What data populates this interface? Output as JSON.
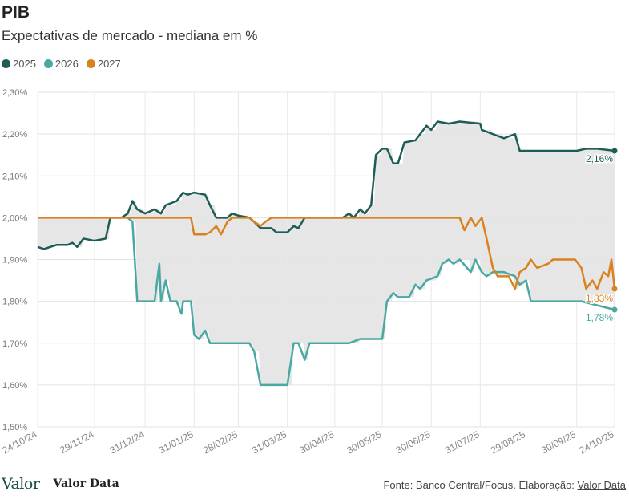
{
  "header": {
    "title": "PIB",
    "subtitle": "Expectativas de mercado - mediana em %"
  },
  "legend": [
    {
      "label": "2025",
      "color": "#1e5c57"
    },
    {
      "label": "2026",
      "color": "#4aa8a3"
    },
    {
      "label": "2027",
      "color": "#d9821f"
    }
  ],
  "footer": {
    "logo": "Valor",
    "logo_secondary": "Valor Data",
    "source_prefix": "Fonte: Banco Central/Focus. Elaboração: ",
    "source_link": "Valor Data"
  },
  "chart_data": {
    "type": "line",
    "title": "PIB",
    "subtitle": "Expectativas de mercado - mediana em %",
    "ylim": [
      1.5,
      2.3
    ],
    "yticks": [
      1.5,
      1.6,
      1.7,
      1.8,
      1.9,
      2.0,
      2.1,
      2.2,
      2.3
    ],
    "ytick_labels": [
      "1,50%",
      "1,60%",
      "1,70%",
      "1,80%",
      "1,90%",
      "2,00%",
      "2,10%",
      "2,20%",
      "2,30%"
    ],
    "xlim": [
      "2024-10-24",
      "2025-10-24"
    ],
    "xticks": [
      "2024-10-24",
      "2024-11-29",
      "2024-12-31",
      "2025-01-31",
      "2025-02-28",
      "2025-03-31",
      "2025-04-30",
      "2025-05-30",
      "2025-06-30",
      "2025-07-31",
      "2025-08-29",
      "2025-09-30",
      "2025-10-24"
    ],
    "xtick_labels": [
      "24/10/24",
      "29/11/24",
      "31/12/24",
      "31/01/25",
      "28/02/25",
      "31/03/25",
      "30/04/25",
      "30/05/25",
      "30/06/25",
      "31/07/25",
      "29/08/25",
      "30/09/25",
      "24/10/25"
    ],
    "grid": true,
    "legend_position": "top-left",
    "shaded_area": "between max and min of series",
    "series": [
      {
        "name": "2025",
        "color": "#1e5c57",
        "end_label": "2,16%",
        "points": [
          [
            "2024-10-24",
            1.93
          ],
          [
            "2024-10-28",
            1.925
          ],
          [
            "2024-11-01",
            1.93
          ],
          [
            "2024-11-05",
            1.935
          ],
          [
            "2024-11-12",
            1.935
          ],
          [
            "2024-11-15",
            1.94
          ],
          [
            "2024-11-18",
            1.93
          ],
          [
            "2024-11-22",
            1.95
          ],
          [
            "2024-11-29",
            1.945
          ],
          [
            "2024-12-06",
            1.95
          ],
          [
            "2024-12-09",
            2.0
          ],
          [
            "2024-12-16",
            2.0
          ],
          [
            "2024-12-20",
            2.01
          ],
          [
            "2024-12-23",
            2.04
          ],
          [
            "2024-12-26",
            2.02
          ],
          [
            "2024-12-31",
            2.01
          ],
          [
            "2025-01-06",
            2.02
          ],
          [
            "2025-01-10",
            2.01
          ],
          [
            "2025-01-13",
            2.03
          ],
          [
            "2025-01-20",
            2.04
          ],
          [
            "2025-01-24",
            2.06
          ],
          [
            "2025-01-27",
            2.055
          ],
          [
            "2025-01-31",
            2.06
          ],
          [
            "2025-02-07",
            2.055
          ],
          [
            "2025-02-10",
            2.03
          ],
          [
            "2025-02-14",
            2.0
          ],
          [
            "2025-02-21",
            2.0
          ],
          [
            "2025-02-24",
            2.01
          ],
          [
            "2025-02-28",
            2.005
          ],
          [
            "2025-03-07",
            2.0
          ],
          [
            "2025-03-10",
            1.99
          ],
          [
            "2025-03-14",
            1.975
          ],
          [
            "2025-03-21",
            1.975
          ],
          [
            "2025-03-24",
            1.965
          ],
          [
            "2025-03-31",
            1.965
          ],
          [
            "2025-04-04",
            1.98
          ],
          [
            "2025-04-07",
            1.975
          ],
          [
            "2025-04-11",
            2.0
          ],
          [
            "2025-04-30",
            2.0
          ],
          [
            "2025-05-05",
            2.0
          ],
          [
            "2025-05-09",
            2.01
          ],
          [
            "2025-05-12",
            2.0
          ],
          [
            "2025-05-16",
            2.02
          ],
          [
            "2025-05-19",
            2.01
          ],
          [
            "2025-05-23",
            2.03
          ],
          [
            "2025-05-26",
            2.15
          ],
          [
            "2025-05-30",
            2.165
          ],
          [
            "2025-06-02",
            2.165
          ],
          [
            "2025-06-06",
            2.13
          ],
          [
            "2025-06-09",
            2.13
          ],
          [
            "2025-06-13",
            2.18
          ],
          [
            "2025-06-20",
            2.185
          ],
          [
            "2025-06-23",
            2.2
          ],
          [
            "2025-06-27",
            2.22
          ],
          [
            "2025-06-30",
            2.21
          ],
          [
            "2025-07-04",
            2.23
          ],
          [
            "2025-07-11",
            2.225
          ],
          [
            "2025-07-18",
            2.23
          ],
          [
            "2025-07-31",
            2.225
          ],
          [
            "2025-08-01",
            2.21
          ],
          [
            "2025-08-08",
            2.2
          ],
          [
            "2025-08-15",
            2.19
          ],
          [
            "2025-08-22",
            2.2
          ],
          [
            "2025-08-25",
            2.16
          ],
          [
            "2025-09-30",
            2.16
          ],
          [
            "2025-10-06",
            2.165
          ],
          [
            "2025-10-13",
            2.165
          ],
          [
            "2025-10-24",
            2.16
          ]
        ]
      },
      {
        "name": "2026",
        "color": "#4aa8a3",
        "end_label": "1,78%",
        "points": [
          [
            "2024-12-20",
            2.0
          ],
          [
            "2024-12-23",
            1.99
          ],
          [
            "2024-12-26",
            1.8
          ],
          [
            "2025-01-06",
            1.8
          ],
          [
            "2025-01-09",
            1.89
          ],
          [
            "2025-01-10",
            1.8
          ],
          [
            "2025-01-13",
            1.85
          ],
          [
            "2025-01-16",
            1.8
          ],
          [
            "2025-01-20",
            1.8
          ],
          [
            "2025-01-23",
            1.77
          ],
          [
            "2025-01-24",
            1.8
          ],
          [
            "2025-01-29",
            1.8
          ],
          [
            "2025-01-31",
            1.72
          ],
          [
            "2025-02-03",
            1.71
          ],
          [
            "2025-02-07",
            1.73
          ],
          [
            "2025-02-10",
            1.7
          ],
          [
            "2025-03-07",
            1.7
          ],
          [
            "2025-03-10",
            1.68
          ],
          [
            "2025-03-14",
            1.6
          ],
          [
            "2025-03-31",
            1.6
          ],
          [
            "2025-04-04",
            1.7
          ],
          [
            "2025-04-07",
            1.7
          ],
          [
            "2025-04-11",
            1.66
          ],
          [
            "2025-04-14",
            1.7
          ],
          [
            "2025-04-25",
            1.7
          ],
          [
            "2025-05-09",
            1.7
          ],
          [
            "2025-05-16",
            1.71
          ],
          [
            "2025-05-30",
            1.71
          ],
          [
            "2025-06-02",
            1.8
          ],
          [
            "2025-06-06",
            1.82
          ],
          [
            "2025-06-09",
            1.81
          ],
          [
            "2025-06-16",
            1.81
          ],
          [
            "2025-06-20",
            1.84
          ],
          [
            "2025-06-23",
            1.83
          ],
          [
            "2025-06-27",
            1.85
          ],
          [
            "2025-07-04",
            1.86
          ],
          [
            "2025-07-07",
            1.89
          ],
          [
            "2025-07-11",
            1.9
          ],
          [
            "2025-07-14",
            1.89
          ],
          [
            "2025-07-18",
            1.9
          ],
          [
            "2025-07-25",
            1.87
          ],
          [
            "2025-07-28",
            1.9
          ],
          [
            "2025-08-01",
            1.87
          ],
          [
            "2025-08-04",
            1.86
          ],
          [
            "2025-08-08",
            1.87
          ],
          [
            "2025-08-15",
            1.87
          ],
          [
            "2025-08-22",
            1.86
          ],
          [
            "2025-08-25",
            1.84
          ],
          [
            "2025-08-29",
            1.85
          ],
          [
            "2025-09-01",
            1.8
          ],
          [
            "2025-09-30",
            1.8
          ],
          [
            "2025-10-03",
            1.8
          ],
          [
            "2025-10-24",
            1.78
          ]
        ]
      },
      {
        "name": "2027",
        "color": "#d9821f",
        "end_label": "1,83%",
        "points": [
          [
            "2024-10-24",
            2.0
          ],
          [
            "2025-01-29",
            2.0
          ],
          [
            "2025-01-31",
            1.96
          ],
          [
            "2025-02-07",
            1.96
          ],
          [
            "2025-02-10",
            1.965
          ],
          [
            "2025-02-14",
            1.98
          ],
          [
            "2025-02-17",
            1.96
          ],
          [
            "2025-02-21",
            1.99
          ],
          [
            "2025-02-24",
            2.0
          ],
          [
            "2025-03-07",
            2.0
          ],
          [
            "2025-03-10",
            1.99
          ],
          [
            "2025-03-14",
            1.98
          ],
          [
            "2025-03-17",
            1.99
          ],
          [
            "2025-03-21",
            2.0
          ],
          [
            "2025-07-18",
            2.0
          ],
          [
            "2025-07-21",
            1.97
          ],
          [
            "2025-07-25",
            2.0
          ],
          [
            "2025-07-28",
            1.98
          ],
          [
            "2025-08-01",
            2.0
          ],
          [
            "2025-08-04",
            1.95
          ],
          [
            "2025-08-08",
            1.88
          ],
          [
            "2025-08-11",
            1.86
          ],
          [
            "2025-08-18",
            1.86
          ],
          [
            "2025-08-22",
            1.83
          ],
          [
            "2025-08-25",
            1.87
          ],
          [
            "2025-08-29",
            1.88
          ],
          [
            "2025-09-01",
            1.9
          ],
          [
            "2025-09-05",
            1.88
          ],
          [
            "2025-09-12",
            1.89
          ],
          [
            "2025-09-15",
            1.9
          ],
          [
            "2025-09-22",
            1.9
          ],
          [
            "2025-09-29",
            1.9
          ],
          [
            "2025-10-03",
            1.88
          ],
          [
            "2025-10-06",
            1.83
          ],
          [
            "2025-10-10",
            1.85
          ],
          [
            "2025-10-13",
            1.83
          ],
          [
            "2025-10-17",
            1.87
          ],
          [
            "2025-10-20",
            1.86
          ],
          [
            "2025-10-22",
            1.9
          ],
          [
            "2025-10-24",
            1.83
          ]
        ]
      }
    ]
  }
}
